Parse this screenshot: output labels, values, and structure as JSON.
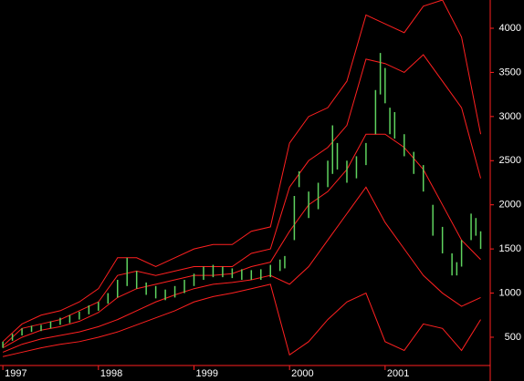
{
  "chart_data": {
    "type": "price-bands",
    "xlim": [
      1996.97,
      2002.1
    ],
    "xticks": [
      1997,
      1998,
      1999,
      2000,
      2001
    ],
    "ylim": [
      190,
      4320
    ],
    "yticks": [
      500,
      1000,
      1500,
      2000,
      2500,
      3000,
      3500,
      4000
    ],
    "axis_color": "#ff2020",
    "bars": {
      "color": "#5fd35f",
      "x": [
        1997.0,
        1997.1,
        1997.2,
        1997.3,
        1997.4,
        1997.5,
        1997.6,
        1997.7,
        1997.8,
        1997.9,
        1998.0,
        1998.1,
        1998.2,
        1998.3,
        1998.4,
        1998.5,
        1998.6,
        1998.7,
        1998.8,
        1998.9,
        1999.0,
        1999.1,
        1999.2,
        1999.3,
        1999.4,
        1999.5,
        1999.6,
        1999.7,
        1999.8,
        1999.9,
        1999.95,
        2000.05,
        2000.1,
        2000.2,
        2000.3,
        2000.4,
        2000.45,
        2000.5,
        2000.6,
        2000.7,
        2000.8,
        2000.9,
        2000.95,
        2001.0,
        2001.05,
        2001.1,
        2001.2,
        2001.3,
        2001.4,
        2001.5,
        2001.6,
        2001.7,
        2001.75,
        2001.8,
        2001.9,
        2001.95,
        2002.0
      ],
      "low": [
        380,
        460,
        520,
        560,
        570,
        600,
        640,
        660,
        700,
        760,
        800,
        880,
        950,
        1080,
        1050,
        980,
        940,
        920,
        950,
        1000,
        1080,
        1150,
        1180,
        1180,
        1170,
        1150,
        1150,
        1150,
        1180,
        1250,
        1280,
        1600,
        2200,
        1850,
        1950,
        2200,
        2350,
        2400,
        2250,
        2300,
        2450,
        2800,
        3250,
        3150,
        2800,
        2750,
        2550,
        2350,
        2150,
        1650,
        1450,
        1200,
        1200,
        1300,
        1600,
        1650,
        1500
      ],
      "high": [
        450,
        540,
        600,
        630,
        640,
        680,
        720,
        750,
        790,
        860,
        900,
        1000,
        1150,
        1400,
        1250,
        1120,
        1080,
        1040,
        1080,
        1150,
        1220,
        1300,
        1320,
        1300,
        1280,
        1270,
        1260,
        1270,
        1320,
        1380,
        1420,
        2100,
        2380,
        2150,
        2250,
        2500,
        2900,
        2700,
        2500,
        2550,
        2700,
        3300,
        3720,
        3550,
        3100,
        3050,
        2800,
        2600,
        2450,
        2000,
        1750,
        1450,
        1350,
        1600,
        1900,
        1850,
        1700
      ]
    },
    "bands": [
      {
        "color": "#ff2020",
        "x": [
          1997.0,
          1997.2,
          1997.4,
          1997.6,
          1997.8,
          1998.0,
          1998.2,
          1998.4,
          1998.6,
          1998.8,
          1999.0,
          1999.2,
          1999.4,
          1999.6,
          1999.8,
          2000.0,
          2000.2,
          2000.4,
          2000.6,
          2000.8,
          2001.0,
          2001.2,
          2001.4,
          2001.6,
          2001.8,
          2002.0
        ],
        "values": [
          450,
          650,
          750,
          800,
          900,
          1050,
          1400,
          1400,
          1300,
          1400,
          1500,
          1550,
          1550,
          1700,
          1750,
          2700,
          3000,
          3100,
          3400,
          4150,
          4050,
          3950,
          4250,
          4320,
          3900,
          2800
        ]
      },
      {
        "color": "#ff2020",
        "x": [
          1997.0,
          1997.2,
          1997.4,
          1997.6,
          1997.8,
          1998.0,
          1998.2,
          1998.4,
          1998.6,
          1998.8,
          1999.0,
          1999.2,
          1999.4,
          1999.6,
          1999.8,
          2000.0,
          2000.2,
          2000.4,
          2000.6,
          2000.8,
          2001.0,
          2001.2,
          2001.4,
          2001.6,
          2001.8,
          2002.0
        ],
        "values": [
          400,
          600,
          650,
          700,
          800,
          900,
          1200,
          1250,
          1200,
          1250,
          1300,
          1300,
          1300,
          1450,
          1500,
          2200,
          2500,
          2650,
          2900,
          3650,
          3600,
          3500,
          3700,
          3400,
          3100,
          2300
        ]
      },
      {
        "color": "#ff2020",
        "x": [
          1997.0,
          1997.2,
          1997.4,
          1997.6,
          1997.8,
          1998.0,
          1998.2,
          1998.4,
          1998.6,
          1998.8,
          1999.0,
          1999.2,
          1999.4,
          1999.6,
          1999.8,
          2000.0,
          2000.2,
          2000.4,
          2000.6,
          2000.8,
          2001.0,
          2001.2,
          2001.4,
          2001.6,
          2001.8,
          2002.0
        ],
        "values": [
          380,
          500,
          580,
          620,
          680,
          780,
          950,
          1050,
          1100,
          1150,
          1200,
          1200,
          1220,
          1300,
          1350,
          1700,
          2000,
          2150,
          2400,
          2800,
          2800,
          2650,
          2400,
          2000,
          1600,
          1380
        ]
      },
      {
        "color": "#ff2020",
        "x": [
          1997.0,
          1997.2,
          1997.4,
          1997.6,
          1997.8,
          1998.0,
          1998.2,
          1998.4,
          1998.6,
          1998.8,
          1999.0,
          1999.2,
          1999.4,
          1999.6,
          1999.8,
          2000.0,
          2000.2,
          2000.4,
          2000.6,
          2000.8,
          2001.0,
          2001.2,
          2001.4,
          2001.6,
          2001.8,
          2002.0
        ],
        "values": [
          330,
          420,
          480,
          520,
          560,
          620,
          700,
          800,
          900,
          980,
          1050,
          1100,
          1120,
          1150,
          1200,
          1100,
          1300,
          1600,
          1900,
          2200,
          1800,
          1500,
          1200,
          1000,
          850,
          950
        ]
      },
      {
        "color": "#ff2020",
        "x": [
          1997.0,
          1997.2,
          1997.4,
          1997.6,
          1997.8,
          1998.0,
          1998.2,
          1998.4,
          1998.6,
          1998.8,
          1999.0,
          1999.2,
          1999.4,
          1999.6,
          1999.8,
          2000.0,
          2000.2,
          2000.4,
          2000.6,
          2000.8,
          2001.0,
          2001.2,
          2001.4,
          2001.6,
          2001.8,
          2002.0
        ],
        "values": [
          280,
          330,
          380,
          420,
          450,
          500,
          560,
          640,
          720,
          800,
          900,
          960,
          1000,
          1050,
          1100,
          300,
          450,
          700,
          900,
          1000,
          450,
          350,
          650,
          600,
          350,
          700
        ]
      }
    ]
  }
}
